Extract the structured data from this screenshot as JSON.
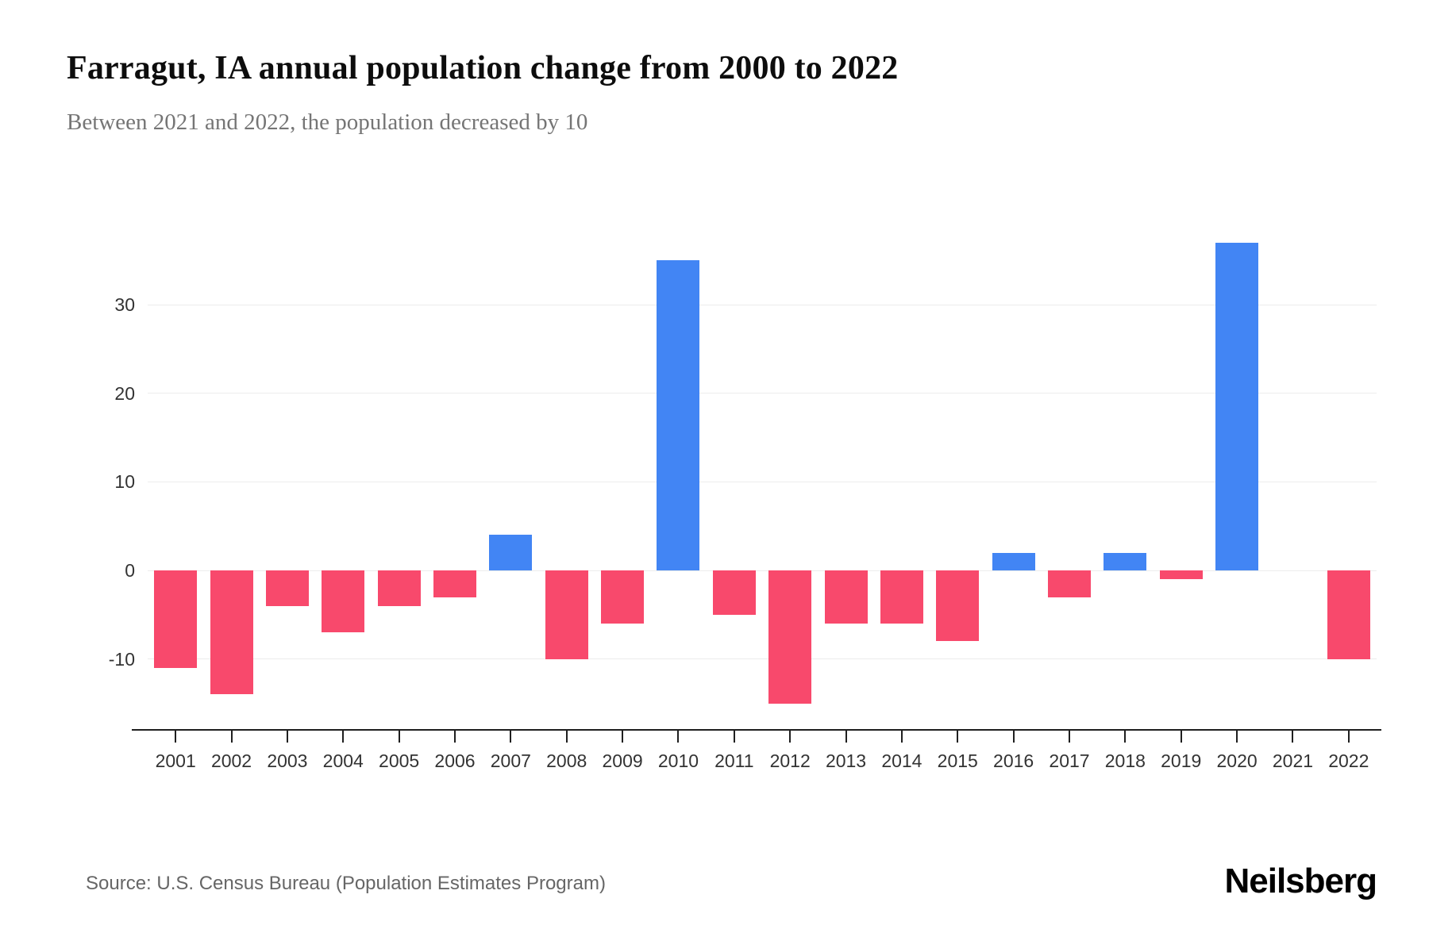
{
  "page": {
    "title": "Farragut, IA annual population change from 2000 to 2022",
    "subtitle": "Between 2021 and 2022, the population decreased by 10",
    "source": "Source: U.S. Census Bureau (Population Estimates Program)",
    "brand": "Neilsberg"
  },
  "chart_data": {
    "type": "bar",
    "title": "Farragut, IA annual population change from 2000 to 2022",
    "subtitle": "Between 2021 and 2022, the population decreased by 10",
    "categories": [
      "2001",
      "2002",
      "2003",
      "2004",
      "2005",
      "2006",
      "2007",
      "2008",
      "2009",
      "2010",
      "2011",
      "2012",
      "2013",
      "2014",
      "2015",
      "2016",
      "2017",
      "2018",
      "2019",
      "2020",
      "2021",
      "2022"
    ],
    "values": [
      -11,
      -14,
      -4,
      -7,
      -4,
      -3,
      4,
      -10,
      -6,
      35,
      -5,
      -15,
      -6,
      -6,
      -8,
      2,
      -3,
      2,
      -1,
      37,
      0,
      -10
    ],
    "xlabel": "",
    "ylabel": "",
    "ylim": [
      -18,
      42
    ],
    "yticks": [
      -10,
      0,
      10,
      20,
      30
    ],
    "grid": true,
    "legend": false,
    "colors": {
      "positive": "#4285f4",
      "negative": "#f8496c"
    }
  }
}
